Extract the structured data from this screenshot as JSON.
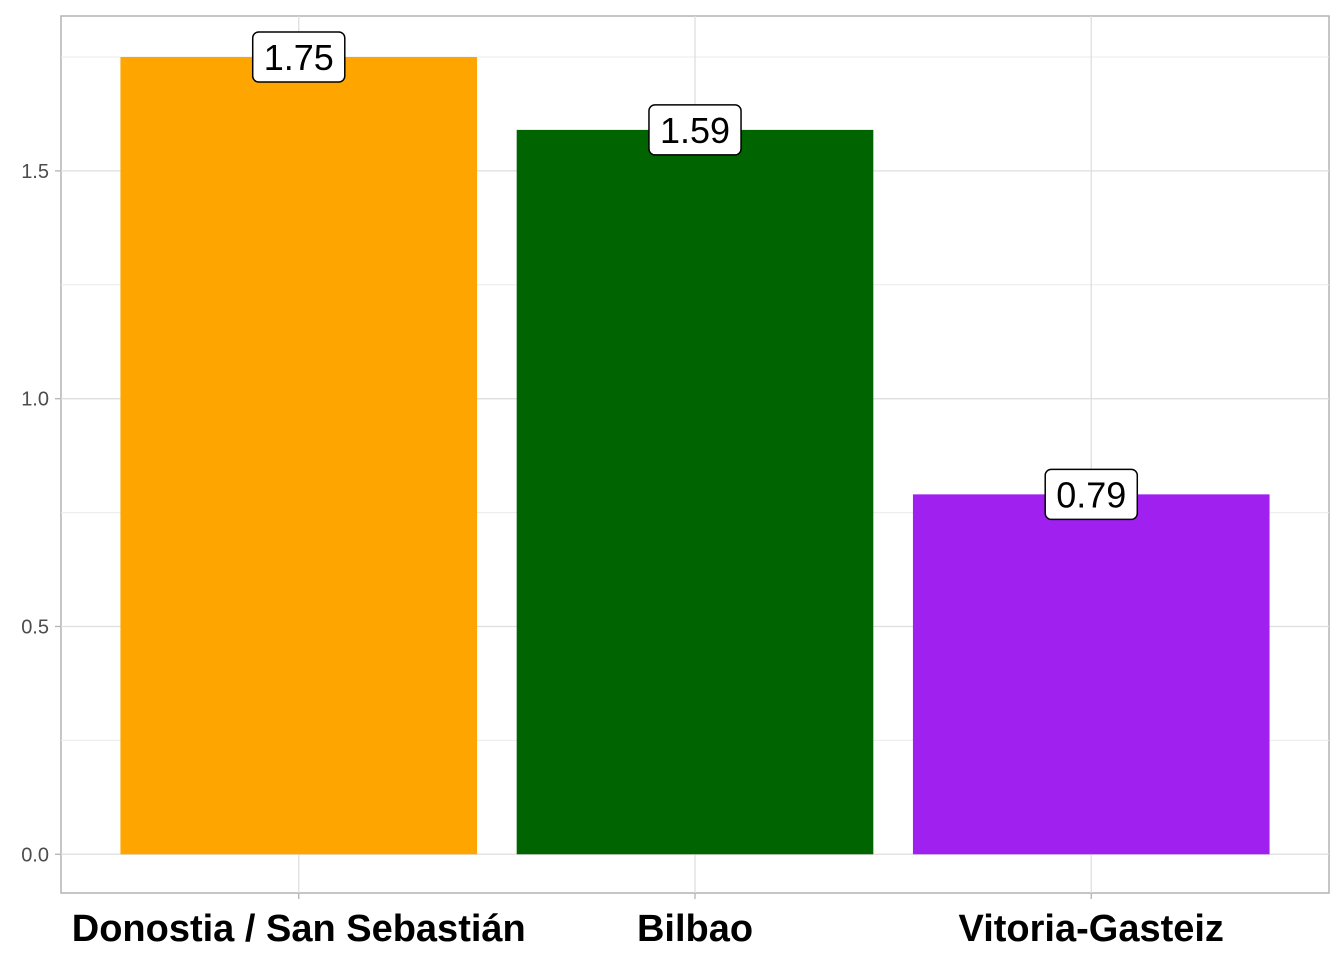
{
  "chart_data": {
    "type": "bar",
    "title": "",
    "xlabel": "",
    "ylabel": "",
    "categories": [
      "Donostia / San Sebastián",
      "Bilbao",
      "Vitoria-Gasteiz"
    ],
    "values": [
      1.75,
      1.59,
      0.79
    ],
    "data_labels": [
      "1.75",
      "1.59",
      "0.79"
    ],
    "colors": [
      "#FFA500",
      "#006400",
      "#A020F0"
    ],
    "ylim": [
      -0.085,
      1.84
    ],
    "yticks": [
      0.0,
      0.5,
      1.0,
      1.5
    ],
    "ytick_labels": [
      "0.0",
      "0.5",
      "1.0",
      "1.5"
    ],
    "grid": true,
    "legend": "none"
  }
}
